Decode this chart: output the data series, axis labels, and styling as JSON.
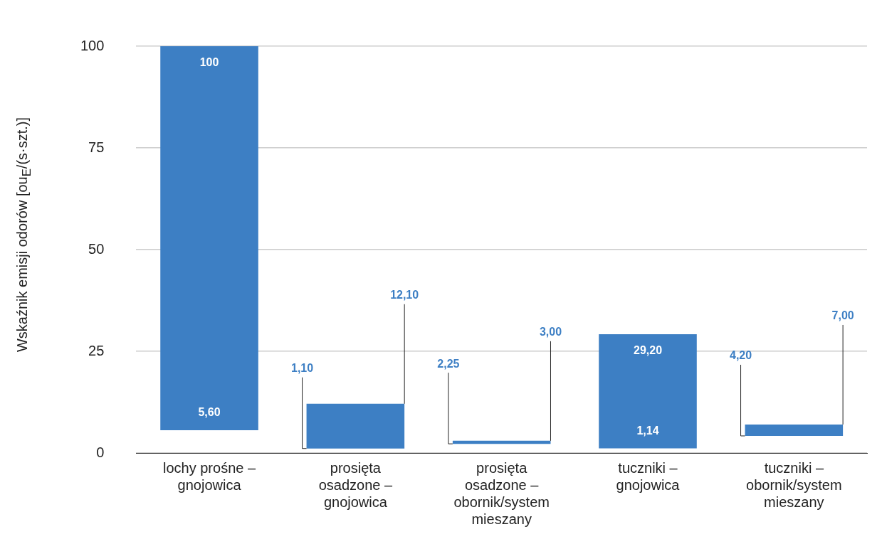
{
  "chart_data": {
    "type": "bar",
    "ylabel": "Wskaźnik emisji odorów [ou$_{E}$/(s·szt.)]",
    "categories": [
      "lochy prośne – gnojowica",
      "prosięta osadzone – gnojowica",
      "prosięta osadzone – obornik/system mieszany",
      "tuczniki – gnojowica",
      "tuczniki – obornik/system mieszany"
    ],
    "base": [
      5.6,
      1.1,
      2.25,
      1.14,
      4.2
    ],
    "values": [
      94.4,
      11,
      0.75,
      28.06,
      2.8
    ],
    "value_labels": [
      [
        "5,60",
        "100"
      ],
      [
        "1,10",
        "12,10"
      ],
      [
        "2,25",
        "3,00"
      ],
      [
        "1,14",
        "29,20"
      ],
      [
        "4,20",
        "7,00"
      ]
    ],
    "color": "#3d7fc4",
    "ylim": [
      0,
      100
    ],
    "yticks": [
      0,
      25,
      50,
      75,
      100
    ],
    "grid": "y",
    "legend": false
  }
}
